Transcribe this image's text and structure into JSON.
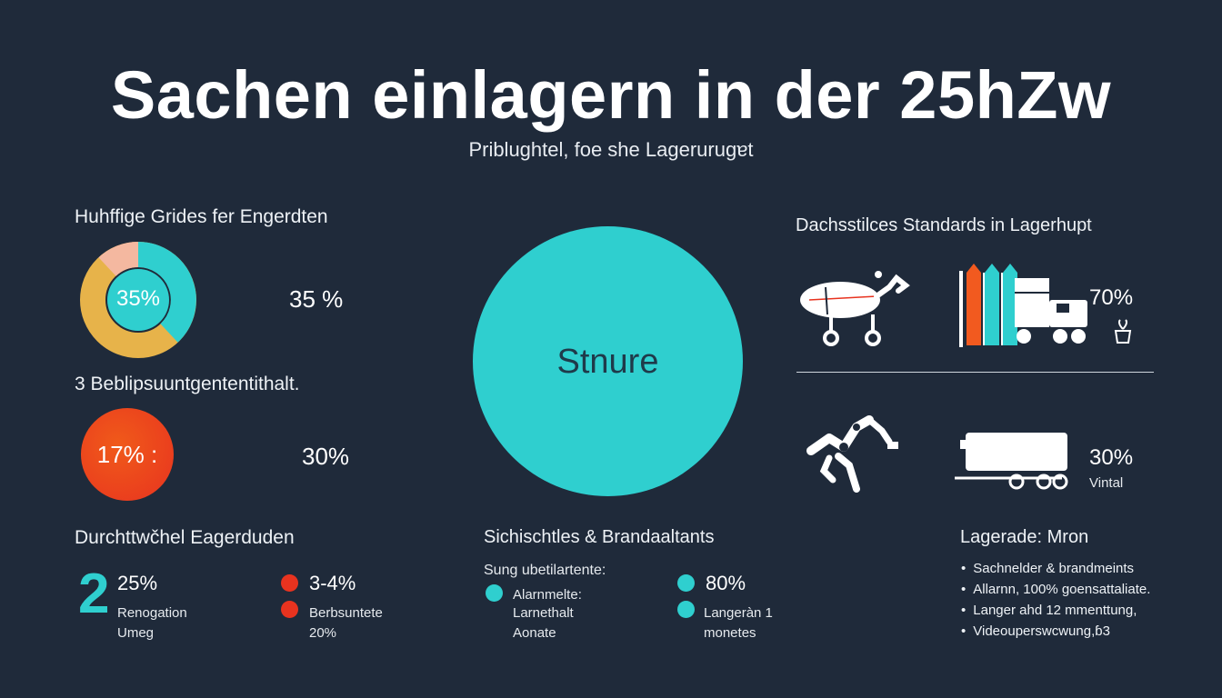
{
  "title": "Sachen einlagern in der 25hZw",
  "subtitle": "Priblughtel, foe she Lagerurugɐt",
  "left": {
    "heading1": "Huhffige Grides fer Engerdten",
    "donut_label": "35%",
    "donut_value": "35 %",
    "heading2": "3 Beblipsuuntgententithalt.",
    "circle_label": "17% :",
    "value2": "30%"
  },
  "center": {
    "circle_text": "Stnure",
    "color": "#2fcfcf"
  },
  "right": {
    "heading": "Dachsstilces Standards in Lagerhupt",
    "value1": "70%",
    "value2": "30%",
    "value2_caption": "Vintal"
  },
  "bottom_left": {
    "heading": "Durchttwčhel Eagerduden",
    "big_digit": "2",
    "stat1_value": "25%",
    "stat1_caption1": "Renogation",
    "stat1_caption2": "Umeg",
    "stat2_value": "3-4%",
    "stat2_caption1": "Berbsuntete",
    "stat2_caption2": "20%"
  },
  "bottom_center": {
    "heading": "Sichischtles & Brandaaltants",
    "subheading": "Sung ubetilartente:",
    "item1_l1": "Alarnmelte:",
    "item1_l2": "Larnethalt",
    "item1_l3": "Aonate",
    "stat_value": "80%",
    "item2_l1": "Langeràn 1",
    "item2_l2": "monetes"
  },
  "bottom_right": {
    "heading": "Lagerade: Mron",
    "bullets": [
      "Sachnelder & brandmeints",
      "Allarnn, 100% goensattaliate.",
      "Langer ahd 12 mmenttung,",
      "Videouperswcwung,ɓ3"
    ]
  },
  "colors": {
    "background": "#1f2a3a",
    "teal": "#2fcfcf",
    "orange": "#f25a1f",
    "red": "#e8331f",
    "donut_yellow": "#e7b34a",
    "donut_salmon": "#f4b8a0"
  },
  "icons": [
    "drone-vehicle-icon",
    "bar-chart-icon",
    "truck-icon",
    "plant-pot-icon",
    "robot-arm-icon",
    "trailer-icon"
  ]
}
